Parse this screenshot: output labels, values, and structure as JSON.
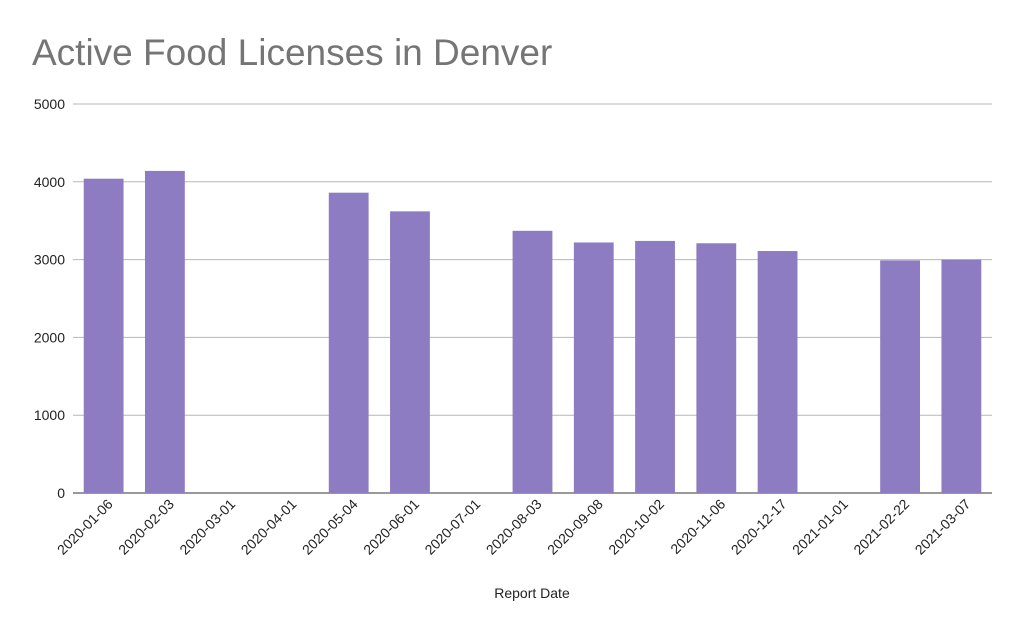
{
  "chart_data": {
    "type": "bar",
    "title": "Active Food Licenses in Denver",
    "xlabel": "Report Date",
    "ylabel": "",
    "ylim": [
      0,
      5000
    ],
    "yticks": [
      0,
      1000,
      2000,
      3000,
      4000,
      5000
    ],
    "grid": true,
    "legend": "none",
    "bar_color": "#8e7cc3",
    "categories": [
      "2020-01-06",
      "2020-02-03",
      "2020-03-01",
      "2020-04-01",
      "2020-05-04",
      "2020-06-01",
      "2020-07-01",
      "2020-08-03",
      "2020-09-08",
      "2020-10-02",
      "2020-11-06",
      "2020-12-17",
      "2021-01-01",
      "2021-02-22",
      "2021-03-07"
    ],
    "values": [
      4040,
      4140,
      null,
      null,
      3860,
      3620,
      null,
      3370,
      3220,
      3240,
      3210,
      3110,
      null,
      2990,
      3000
    ]
  }
}
